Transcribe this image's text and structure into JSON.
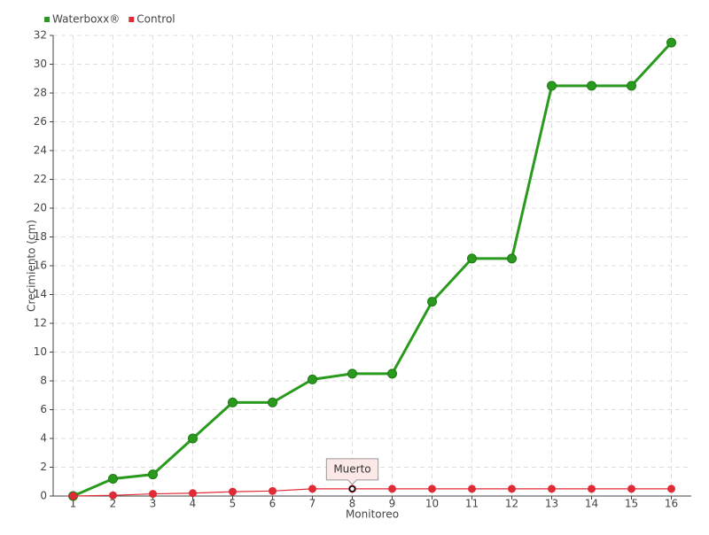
{
  "chart_data": {
    "type": "line",
    "x_label": "Monitoreo",
    "y_label": "Crecimiento (cm)",
    "categories": [
      "1",
      "2",
      "3",
      "4",
      "5",
      "6",
      "7",
      "8",
      "9",
      "10",
      "11",
      "12",
      "13",
      "14",
      "15",
      "16"
    ],
    "series": [
      {
        "name": "Waterboxx®",
        "color": "#2a9a1e",
        "values": [
          0,
          1.2,
          1.5,
          4,
          6.5,
          6.5,
          8.1,
          8.5,
          8.5,
          13.5,
          16.5,
          16.5,
          28.5,
          28.5,
          28.5,
          31.5
        ]
      },
      {
        "name": "Control",
        "color": "#e02a35",
        "values": [
          0,
          0.05,
          0.15,
          0.2,
          0.3,
          0.35,
          0.5,
          0.5,
          0.5,
          0.5,
          0.5,
          0.5,
          0.5,
          0.5,
          0.5,
          0.5
        ]
      }
    ],
    "ylim": [
      0,
      32
    ],
    "yticks": [
      0,
      2,
      4,
      6,
      8,
      10,
      12,
      14,
      16,
      18,
      20,
      22,
      24,
      26,
      28,
      30,
      32
    ],
    "grid": true,
    "legend": "top-left",
    "annotations": [
      {
        "text": "Muerto",
        "series": "Control",
        "x": "8"
      }
    ]
  }
}
